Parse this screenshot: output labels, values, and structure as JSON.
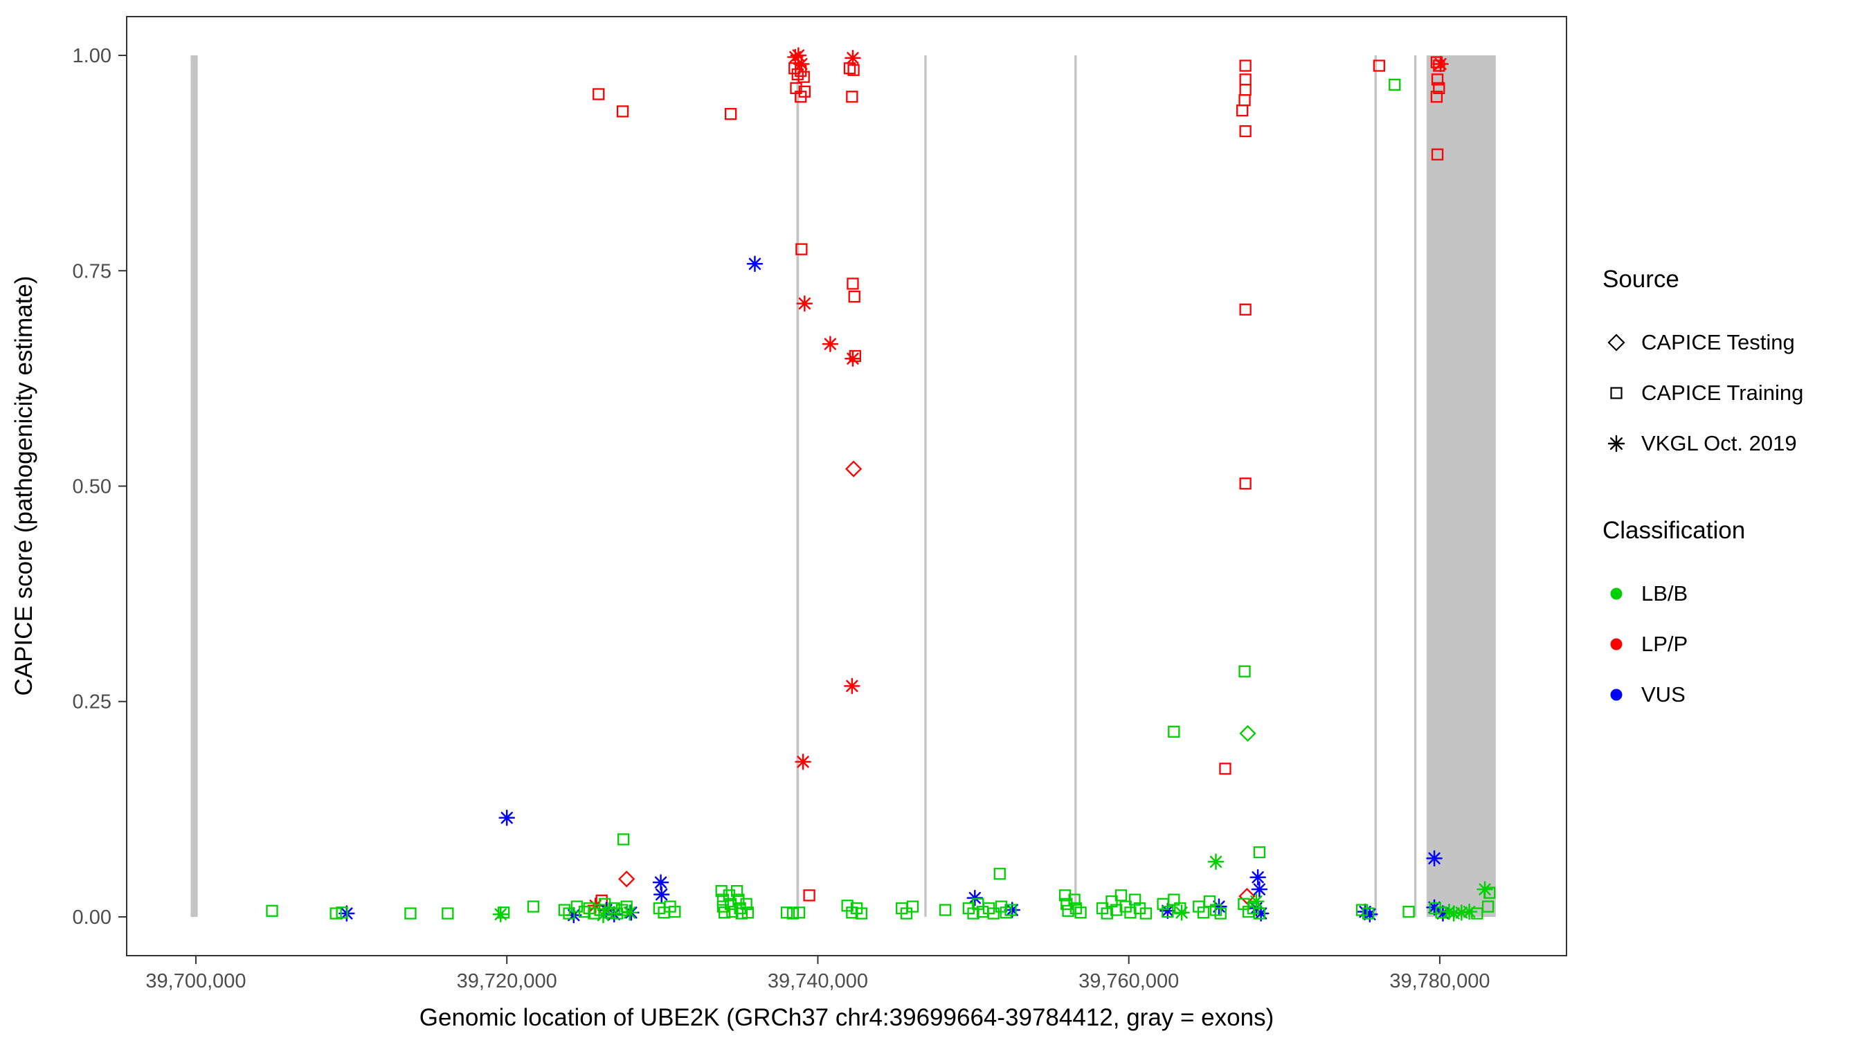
{
  "axes": {
    "x_title": "Genomic location of UBE2K (GRCh37 chr4:39699664-39784412, gray = exons)",
    "y_title": "CAPICE score (pathogenicity estimate)",
    "x_ticks": [
      {
        "value": 39700000,
        "label": "39,700,000"
      },
      {
        "value": 39720000,
        "label": "39,720,000"
      },
      {
        "value": 39740000,
        "label": "39,740,000"
      },
      {
        "value": 39760000,
        "label": "39,760,000"
      },
      {
        "value": 39780000,
        "label": "39,780,000"
      }
    ],
    "y_ticks": [
      {
        "value": 0.0,
        "label": "0.00"
      },
      {
        "value": 0.25,
        "label": "0.25"
      },
      {
        "value": 0.5,
        "label": "0.50"
      },
      {
        "value": 0.75,
        "label": "0.75"
      },
      {
        "value": 1.0,
        "label": "1.00"
      }
    ]
  },
  "legend": {
    "source": {
      "title": "Source",
      "items": [
        {
          "label": "CAPICE Testing",
          "shape": "diamond"
        },
        {
          "label": "CAPICE Training",
          "shape": "square"
        },
        {
          "label": "VKGL Oct. 2019",
          "shape": "asterisk"
        }
      ]
    },
    "classification": {
      "title": "Classification",
      "items": [
        {
          "label": "LB/B",
          "color": "#00D000"
        },
        {
          "label": "LP/P",
          "color": "#FF0000"
        },
        {
          "label": "VUS",
          "color": "#0000FF"
        }
      ]
    }
  },
  "chart_data": {
    "type": "scatter",
    "x_axis_range": [
      39695550,
      39788150
    ],
    "ylim": [
      0,
      1
    ],
    "exon_color": "#C4C4C4",
    "colors": {
      "g": "#00D000",
      "r": "#FF0000",
      "b": "#0000FF"
    },
    "shape_legend": {
      "sq": "CAPICE Training",
      "di": "CAPICE Testing",
      "as": "VKGL Oct. 2019"
    },
    "class_legend": {
      "g": "LB/B",
      "r": "LP/P",
      "b": "VUS"
    },
    "exons": [
      [
        39699664,
        39700120
      ],
      [
        39738620,
        39738790
      ],
      [
        39746850,
        39747000
      ],
      [
        39756500,
        39756650
      ],
      [
        39775800,
        39775950
      ],
      [
        39778350,
        39778500
      ],
      [
        39779150,
        39783600
      ]
    ],
    "points": [
      [
        39738550,
        0.998,
        "as",
        "r"
      ],
      [
        39738750,
        1.0,
        "as",
        "r"
      ],
      [
        39738950,
        0.99,
        "as",
        "r"
      ],
      [
        39738500,
        0.985,
        "sq",
        "r"
      ],
      [
        39738700,
        0.978,
        "sq",
        "r"
      ],
      [
        39738900,
        0.982,
        "sq",
        "r"
      ],
      [
        39739100,
        0.975,
        "sq",
        "r"
      ],
      [
        39738600,
        0.962,
        "sq",
        "r"
      ],
      [
        39738900,
        0.952,
        "sq",
        "r"
      ],
      [
        39739150,
        0.958,
        "sq",
        "r"
      ],
      [
        39742250,
        0.997,
        "as",
        "r"
      ],
      [
        39742050,
        0.985,
        "sq",
        "r"
      ],
      [
        39742300,
        0.983,
        "sq",
        "r"
      ],
      [
        39742200,
        0.952,
        "sq",
        "r"
      ],
      [
        39725900,
        0.955,
        "sq",
        "r"
      ],
      [
        39727450,
        0.935,
        "sq",
        "r"
      ],
      [
        39734400,
        0.932,
        "sq",
        "r"
      ],
      [
        39738950,
        0.775,
        "sq",
        "r"
      ],
      [
        39739150,
        0.712,
        "as",
        "r"
      ],
      [
        39742250,
        0.735,
        "sq",
        "r"
      ],
      [
        39742350,
        0.72,
        "sq",
        "r"
      ],
      [
        39740800,
        0.665,
        "as",
        "r"
      ],
      [
        39742250,
        0.648,
        "as",
        "r"
      ],
      [
        39742400,
        0.651,
        "sq",
        "r"
      ],
      [
        39742300,
        0.52,
        "di",
        "r"
      ],
      [
        39742200,
        0.268,
        "as",
        "r"
      ],
      [
        39739050,
        0.18,
        "as",
        "r"
      ],
      [
        39739450,
        0.025,
        "sq",
        "r"
      ],
      [
        39726100,
        0.019,
        "sq",
        "r"
      ],
      [
        39725700,
        0.013,
        "as",
        "r"
      ],
      [
        39727700,
        0.044,
        "di",
        "r"
      ],
      [
        39767500,
        0.988,
        "sq",
        "r"
      ],
      [
        39767500,
        0.972,
        "sq",
        "r"
      ],
      [
        39767500,
        0.96,
        "sq",
        "r"
      ],
      [
        39767450,
        0.948,
        "sq",
        "r"
      ],
      [
        39767300,
        0.936,
        "sq",
        "r"
      ],
      [
        39767500,
        0.912,
        "sq",
        "r"
      ],
      [
        39767500,
        0.705,
        "sq",
        "r"
      ],
      [
        39767500,
        0.503,
        "sq",
        "r"
      ],
      [
        39766200,
        0.172,
        "sq",
        "r"
      ],
      [
        39767600,
        0.024,
        "di",
        "r"
      ],
      [
        39776100,
        0.988,
        "sq",
        "r"
      ],
      [
        39779800,
        0.992,
        "sq",
        "r"
      ],
      [
        39779950,
        0.988,
        "sq",
        "r"
      ],
      [
        39780050,
        0.99,
        "as",
        "r"
      ],
      [
        39779850,
        0.972,
        "sq",
        "r"
      ],
      [
        39779950,
        0.962,
        "sq",
        "r"
      ],
      [
        39779800,
        0.952,
        "sq",
        "r"
      ],
      [
        39779850,
        0.885,
        "sq",
        "r"
      ],
      [
        39735950,
        0.758,
        "as",
        "b"
      ],
      [
        39720000,
        0.115,
        "as",
        "b"
      ],
      [
        39779650,
        0.068,
        "as",
        "b"
      ],
      [
        39729900,
        0.04,
        "as",
        "b"
      ],
      [
        39729950,
        0.026,
        "as",
        "b"
      ],
      [
        39709700,
        0.004,
        "as",
        "b"
      ],
      [
        39724300,
        0.002,
        "as",
        "b"
      ],
      [
        39726400,
        0.008,
        "as",
        "b"
      ],
      [
        39726900,
        0.003,
        "as",
        "b"
      ],
      [
        39728000,
        0.005,
        "as",
        "b"
      ],
      [
        39750100,
        0.022,
        "as",
        "b"
      ],
      [
        39752500,
        0.008,
        "as",
        "b"
      ],
      [
        39762500,
        0.007,
        "as",
        "b"
      ],
      [
        39765800,
        0.012,
        "as",
        "b"
      ],
      [
        39768300,
        0.046,
        "as",
        "b"
      ],
      [
        39768400,
        0.032,
        "as",
        "b"
      ],
      [
        39768200,
        0.01,
        "as",
        "b"
      ],
      [
        39768500,
        0.004,
        "as",
        "b"
      ],
      [
        39775200,
        0.006,
        "as",
        "b"
      ],
      [
        39775500,
        0.003,
        "as",
        "b"
      ],
      [
        39779650,
        0.011,
        "as",
        "b"
      ],
      [
        39780200,
        0.004,
        "as",
        "b"
      ],
      [
        39727500,
        0.09,
        "sq",
        "g"
      ],
      [
        39751700,
        0.05,
        "sq",
        "g"
      ],
      [
        39767450,
        0.285,
        "sq",
        "g"
      ],
      [
        39762900,
        0.215,
        "sq",
        "g"
      ],
      [
        39767650,
        0.213,
        "di",
        "g"
      ],
      [
        39765600,
        0.064,
        "as",
        "g"
      ],
      [
        39768400,
        0.075,
        "sq",
        "g"
      ],
      [
        39777100,
        0.966,
        "sq",
        "g"
      ],
      [
        39782900,
        0.032,
        "as",
        "g"
      ],
      [
        39704900,
        0.007,
        "sq",
        "g"
      ],
      [
        39709000,
        0.004,
        "sq",
        "g"
      ],
      [
        39709400,
        0.005,
        "sq",
        "g"
      ],
      [
        39713800,
        0.004,
        "sq",
        "g"
      ],
      [
        39716200,
        0.004,
        "sq",
        "g"
      ],
      [
        39719600,
        0.003,
        "as",
        "g"
      ],
      [
        39719800,
        0.005,
        "sq",
        "g"
      ],
      [
        39721700,
        0.012,
        "sq",
        "g"
      ],
      [
        39723700,
        0.008,
        "sq",
        "g"
      ],
      [
        39724000,
        0.004,
        "sq",
        "g"
      ],
      [
        39724500,
        0.012,
        "sq",
        "g"
      ],
      [
        39725000,
        0.006,
        "sq",
        "g"
      ],
      [
        39725300,
        0.01,
        "sq",
        "g"
      ],
      [
        39725600,
        0.004,
        "sq",
        "g"
      ],
      [
        39726000,
        0.008,
        "sq",
        "g"
      ],
      [
        39726300,
        0.015,
        "sq",
        "g"
      ],
      [
        39726600,
        0.005,
        "sq",
        "g"
      ],
      [
        39726900,
        0.01,
        "sq",
        "g"
      ],
      [
        39727100,
        0.004,
        "sq",
        "g"
      ],
      [
        39727400,
        0.008,
        "sq",
        "g"
      ],
      [
        39727700,
        0.012,
        "sq",
        "g"
      ],
      [
        39727900,
        0.005,
        "as",
        "g"
      ],
      [
        39726200,
        0.002,
        "as",
        "g"
      ],
      [
        39729800,
        0.01,
        "sq",
        "g"
      ],
      [
        39730100,
        0.005,
        "sq",
        "g"
      ],
      [
        39730500,
        0.012,
        "sq",
        "g"
      ],
      [
        39730800,
        0.006,
        "sq",
        "g"
      ],
      [
        39733800,
        0.03,
        "sq",
        "g"
      ],
      [
        39733900,
        0.02,
        "sq",
        "g"
      ],
      [
        39733900,
        0.012,
        "sq",
        "g"
      ],
      [
        39734000,
        0.005,
        "sq",
        "g"
      ],
      [
        39734300,
        0.025,
        "sq",
        "g"
      ],
      [
        39734400,
        0.015,
        "sq",
        "g"
      ],
      [
        39734500,
        0.006,
        "sq",
        "g"
      ],
      [
        39734800,
        0.03,
        "sq",
        "g"
      ],
      [
        39734900,
        0.02,
        "sq",
        "g"
      ],
      [
        39735000,
        0.01,
        "sq",
        "g"
      ],
      [
        39735100,
        0.004,
        "sq",
        "g"
      ],
      [
        39735400,
        0.015,
        "sq",
        "g"
      ],
      [
        39735500,
        0.005,
        "sq",
        "g"
      ],
      [
        39738000,
        0.005,
        "sq",
        "g"
      ],
      [
        39738400,
        0.004,
        "sq",
        "g"
      ],
      [
        39738800,
        0.005,
        "sq",
        "g"
      ],
      [
        39741900,
        0.013,
        "sq",
        "g"
      ],
      [
        39742200,
        0.005,
        "sq",
        "g"
      ],
      [
        39742500,
        0.01,
        "sq",
        "g"
      ],
      [
        39742800,
        0.004,
        "sq",
        "g"
      ],
      [
        39745400,
        0.01,
        "sq",
        "g"
      ],
      [
        39745700,
        0.004,
        "sq",
        "g"
      ],
      [
        39746100,
        0.012,
        "sq",
        "g"
      ],
      [
        39748200,
        0.008,
        "sq",
        "g"
      ],
      [
        39749700,
        0.01,
        "sq",
        "g"
      ],
      [
        39750000,
        0.004,
        "sq",
        "g"
      ],
      [
        39750300,
        0.015,
        "sq",
        "g"
      ],
      [
        39750600,
        0.006,
        "sq",
        "g"
      ],
      [
        39751000,
        0.01,
        "sq",
        "g"
      ],
      [
        39751300,
        0.004,
        "sq",
        "g"
      ],
      [
        39751800,
        0.012,
        "sq",
        "g"
      ],
      [
        39752100,
        0.005,
        "sq",
        "g"
      ],
      [
        39752400,
        0.008,
        "sq",
        "g"
      ],
      [
        39755900,
        0.025,
        "sq",
        "g"
      ],
      [
        39756000,
        0.015,
        "sq",
        "g"
      ],
      [
        39756100,
        0.007,
        "sq",
        "g"
      ],
      [
        39756500,
        0.02,
        "sq",
        "g"
      ],
      [
        39756600,
        0.01,
        "sq",
        "g"
      ],
      [
        39756900,
        0.005,
        "sq",
        "g"
      ],
      [
        39758300,
        0.01,
        "sq",
        "g"
      ],
      [
        39758600,
        0.004,
        "sq",
        "g"
      ],
      [
        39758900,
        0.018,
        "sq",
        "g"
      ],
      [
        39759200,
        0.008,
        "sq",
        "g"
      ],
      [
        39759500,
        0.025,
        "sq",
        "g"
      ],
      [
        39759800,
        0.012,
        "sq",
        "g"
      ],
      [
        39760100,
        0.005,
        "sq",
        "g"
      ],
      [
        39760400,
        0.02,
        "sq",
        "g"
      ],
      [
        39760700,
        0.01,
        "sq",
        "g"
      ],
      [
        39761100,
        0.004,
        "sq",
        "g"
      ],
      [
        39762200,
        0.015,
        "sq",
        "g"
      ],
      [
        39762500,
        0.006,
        "sq",
        "g"
      ],
      [
        39762900,
        0.02,
        "sq",
        "g"
      ],
      [
        39763300,
        0.01,
        "sq",
        "g"
      ],
      [
        39763400,
        0.005,
        "as",
        "g"
      ],
      [
        39764500,
        0.012,
        "sq",
        "g"
      ],
      [
        39764800,
        0.005,
        "sq",
        "g"
      ],
      [
        39765200,
        0.018,
        "sq",
        "g"
      ],
      [
        39765600,
        0.008,
        "sq",
        "g"
      ],
      [
        39765900,
        0.004,
        "sq",
        "g"
      ],
      [
        39767400,
        0.015,
        "sq",
        "g"
      ],
      [
        39767700,
        0.006,
        "sq",
        "g"
      ],
      [
        39768000,
        0.01,
        "sq",
        "g"
      ],
      [
        39768400,
        0.004,
        "sq",
        "g"
      ],
      [
        39768200,
        0.018,
        "as",
        "g"
      ],
      [
        39775000,
        0.008,
        "sq",
        "g"
      ],
      [
        39775400,
        0.004,
        "sq",
        "g"
      ],
      [
        39778000,
        0.006,
        "sq",
        "g"
      ],
      [
        39779700,
        0.01,
        "sq",
        "g"
      ],
      [
        39780100,
        0.005,
        "sq",
        "g"
      ],
      [
        39780600,
        0.006,
        "as",
        "g"
      ],
      [
        39780900,
        0.004,
        "as",
        "g"
      ],
      [
        39781400,
        0.005,
        "as",
        "g"
      ],
      [
        39781900,
        0.006,
        "as",
        "g"
      ],
      [
        39782400,
        0.004,
        "sq",
        "g"
      ],
      [
        39783100,
        0.012,
        "sq",
        "g"
      ],
      [
        39783200,
        0.028,
        "sq",
        "g"
      ]
    ]
  }
}
